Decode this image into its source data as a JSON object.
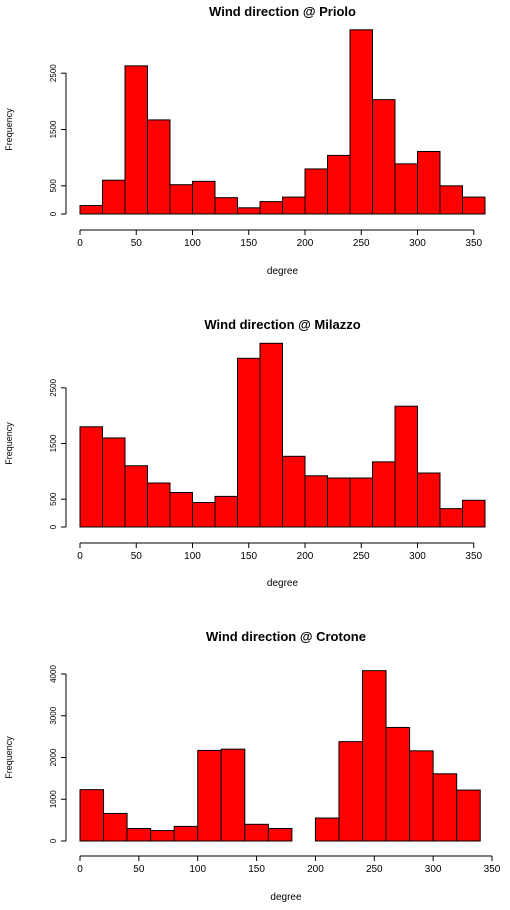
{
  "chart_data": [
    {
      "type": "bar",
      "title": "Wind direction @ Priolo",
      "xlabel": "degree",
      "ylabel": "Frequency",
      "bin_width": 20,
      "bin_starts": [
        0,
        20,
        40,
        60,
        80,
        100,
        120,
        140,
        160,
        180,
        200,
        220,
        240,
        260,
        280,
        300,
        320,
        340
      ],
      "values": [
        150,
        600,
        2630,
        1670,
        520,
        580,
        290,
        110,
        220,
        300,
        800,
        1040,
        3270,
        2030,
        890,
        1110,
        500,
        300
      ],
      "xlim": [
        0,
        360
      ],
      "ylim": [
        0,
        3000
      ],
      "xticks": [
        0,
        50,
        100,
        150,
        200,
        250,
        300,
        350
      ],
      "yticks": [
        0,
        500,
        1500,
        2500
      ],
      "color": "#ff0000"
    },
    {
      "type": "bar",
      "title": "Wind direction @ Milazzo",
      "xlabel": "degree",
      "ylabel": "Frequency",
      "bin_width": 20,
      "bin_starts": [
        0,
        20,
        40,
        60,
        80,
        100,
        120,
        140,
        160,
        180,
        200,
        220,
        240,
        260,
        280,
        300,
        320,
        340
      ],
      "values": [
        1800,
        1600,
        1100,
        790,
        620,
        440,
        550,
        3030,
        3300,
        1270,
        920,
        880,
        880,
        1170,
        2170,
        970,
        330,
        480
      ],
      "xlim": [
        0,
        360
      ],
      "ylim": [
        0,
        3000
      ],
      "xticks": [
        0,
        50,
        100,
        150,
        200,
        250,
        300,
        350
      ],
      "yticks": [
        0,
        500,
        1500,
        2500
      ],
      "color": "#ff0000"
    },
    {
      "type": "bar",
      "title": "Wind direction @ Crotone",
      "xlabel": "degree",
      "ylabel": "Frequency",
      "bin_width": 20,
      "bin_starts": [
        0,
        20,
        40,
        60,
        80,
        100,
        120,
        140,
        160,
        180,
        200,
        220,
        240,
        260,
        280,
        300,
        320
      ],
      "values": [
        1230,
        660,
        300,
        250,
        350,
        2170,
        2200,
        400,
        300,
        0,
        550,
        2380,
        4080,
        2720,
        2160,
        1610,
        1220
      ],
      "xlim": [
        0,
        350
      ],
      "ylim": [
        0,
        4000
      ],
      "xticks": [
        0,
        50,
        100,
        150,
        200,
        250,
        300,
        350
      ],
      "yticks": [
        0,
        1000,
        2000,
        3000,
        4000
      ],
      "color": "#ff0000"
    }
  ]
}
